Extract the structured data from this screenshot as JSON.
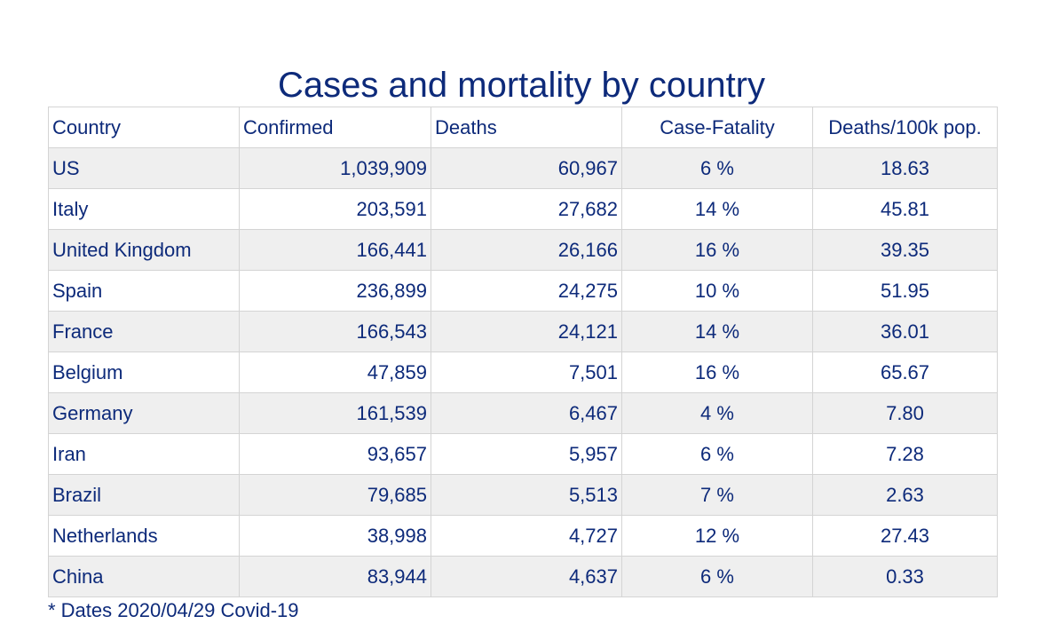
{
  "chart_data": {
    "type": "table",
    "title": "Cases and mortality by country",
    "columns": [
      "Country",
      "Confirmed",
      "Deaths",
      "Case-Fatality",
      "Deaths/100k pop."
    ],
    "rows": [
      [
        "US",
        "1,039,909",
        "60,967",
        "6 %",
        "18.63"
      ],
      [
        "Italy",
        "203,591",
        "27,682",
        "14 %",
        "45.81"
      ],
      [
        "United Kingdom",
        "166,441",
        "26,166",
        "16 %",
        "39.35"
      ],
      [
        "Spain",
        "236,899",
        "24,275",
        "10 %",
        "51.95"
      ],
      [
        "France",
        "166,543",
        "24,121",
        "14 %",
        "36.01"
      ],
      [
        "Belgium",
        "47,859",
        "7,501",
        "16 %",
        "65.67"
      ],
      [
        "Germany",
        "161,539",
        "6,467",
        "4 %",
        "7.80"
      ],
      [
        "Iran",
        "93,657",
        "5,957",
        "6 %",
        "7.28"
      ],
      [
        "Brazil",
        "79,685",
        "5,513",
        "7 %",
        "2.63"
      ],
      [
        "Netherlands",
        "38,998",
        "4,727",
        "12 %",
        "27.43"
      ],
      [
        "China",
        "83,944",
        "4,637",
        "6 %",
        "0.33"
      ]
    ],
    "footnote": "* Dates 2020/04/29 Covid-19"
  },
  "colors": {
    "text": "#0d2a7a",
    "stripe": "#efefef",
    "border": "#d4d4d4"
  }
}
